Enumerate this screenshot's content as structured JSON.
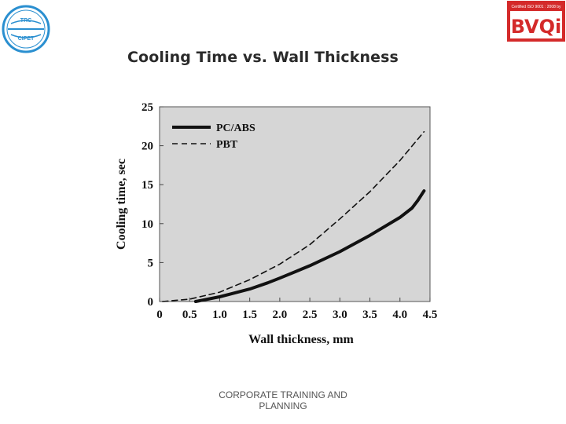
{
  "header": {
    "left_logo": {
      "icon": "cipet-emblem-icon",
      "text_top": "TRC",
      "text_bottom": "CIPET"
    },
    "right_logo": {
      "icon": "bvqi-logo-icon",
      "cert_text": "Certified ISO 9001 : 2008 by",
      "brand": "BVQi",
      "color": "#d42a2a"
    }
  },
  "slide": {
    "title": "Cooling Time vs. Wall Thickness"
  },
  "footer": {
    "line1": "CORPORATE TRAINING AND",
    "line2": "PLANNING"
  },
  "chart_data": {
    "type": "line",
    "title": "Cooling Time vs. Wall Thickness",
    "xlabel": "Wall thickness, mm",
    "ylabel": "Cooling time, sec",
    "xlim": [
      0,
      4.5
    ],
    "ylim": [
      0,
      25
    ],
    "xticks": [
      "0",
      "0.5",
      "1.0",
      "1.5",
      "2.0",
      "2.5",
      "3.0",
      "3.5",
      "4.0",
      "4.5"
    ],
    "yticks": [
      "0",
      "5",
      "10",
      "15",
      "20",
      "25"
    ],
    "legend": "top-left",
    "grid": false,
    "background": "#d6d6d6",
    "series": [
      {
        "name": "PC/ABS",
        "style": "solid",
        "x": [
          0.6,
          0.8,
          1.0,
          1.2,
          1.5,
          1.8,
          2.0,
          2.5,
          3.0,
          3.5,
          4.0,
          4.2,
          4.3,
          4.4
        ],
        "y": [
          0,
          0.3,
          0.6,
          1.0,
          1.6,
          2.4,
          3.0,
          4.6,
          6.4,
          8.5,
          10.8,
          12.0,
          13.0,
          14.2
        ]
      },
      {
        "name": "PBT",
        "style": "dashed",
        "x": [
          0.05,
          0.5,
          1.0,
          1.5,
          2.0,
          2.5,
          3.0,
          3.5,
          4.0,
          4.4
        ],
        "y": [
          0,
          0.3,
          1.2,
          2.8,
          4.8,
          7.3,
          10.6,
          14.1,
          18.1,
          21.8
        ]
      }
    ]
  }
}
